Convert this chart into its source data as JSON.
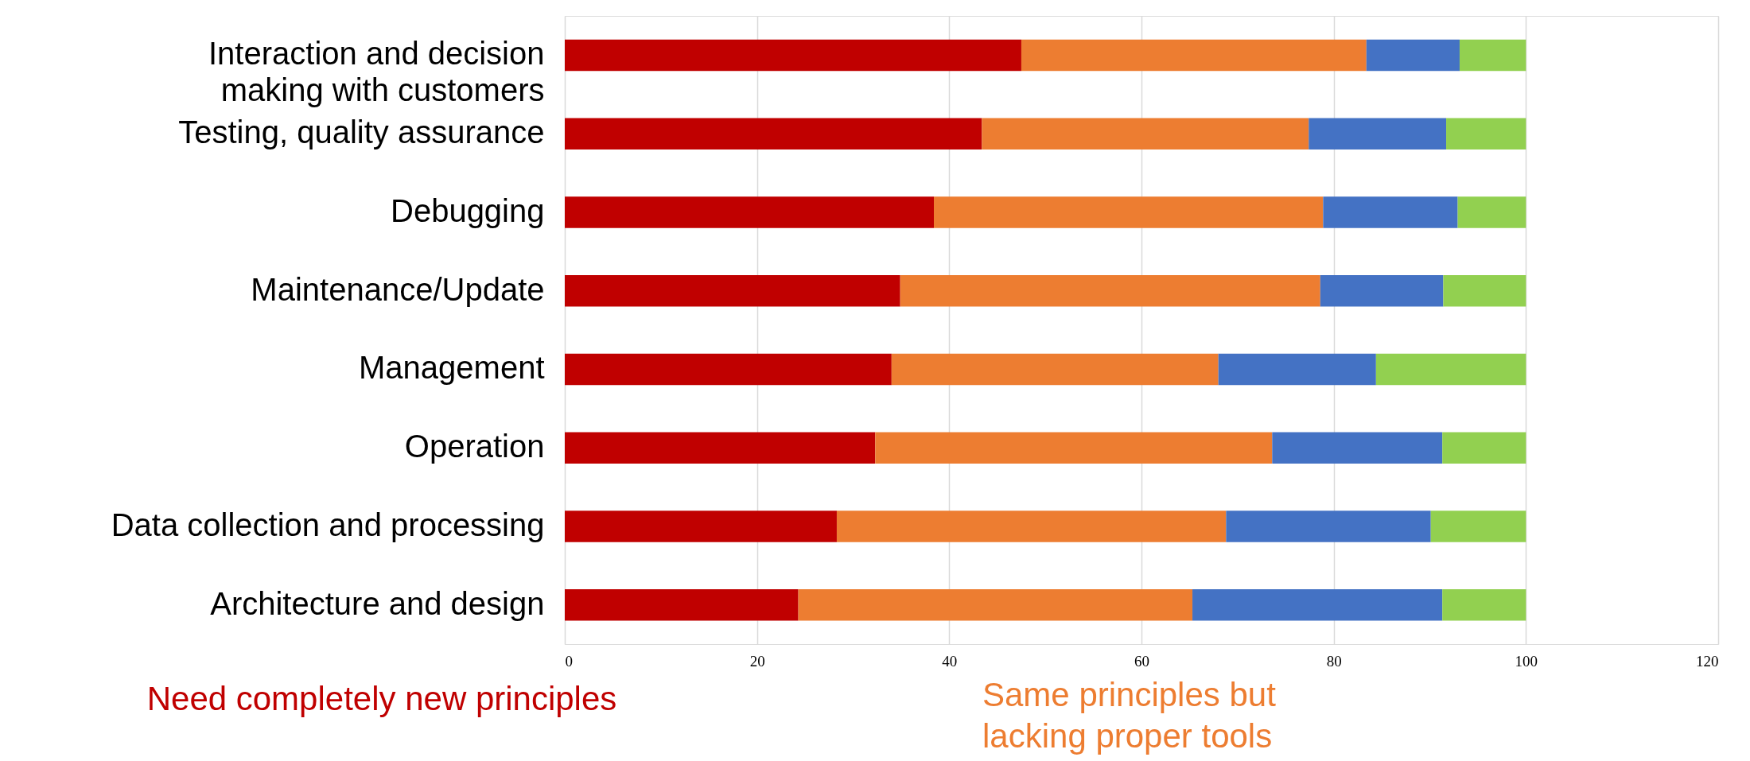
{
  "chart_data": {
    "type": "bar",
    "orientation": "horizontal",
    "stacked": true,
    "categories": [
      "Interaction and decision\nmaking with customers",
      "Testing, quality assurance",
      "Debugging",
      "Maintenance/Update",
      "Management",
      "Operation",
      "Data collection and processing",
      "Architecture and design"
    ],
    "series": [
      {
        "name": "Need completely new principles",
        "color": "#c00000",
        "values": [
          47.5,
          43.4,
          38.4,
          34.9,
          34.0,
          32.3,
          28.3,
          24.3
        ]
      },
      {
        "name": "Same principles but\nlacking proper tools",
        "color": "#ed7d31",
        "values": [
          35.9,
          34.0,
          40.5,
          43.7,
          34.0,
          41.3,
          40.5,
          41.0
        ]
      },
      {
        "color": "#4472c4",
        "values": [
          9.7,
          14.3,
          14.0,
          12.8,
          16.4,
          17.7,
          21.3,
          26.0
        ]
      },
      {
        "color": "#92d050",
        "values": [
          6.9,
          8.3,
          7.1,
          8.6,
          15.6,
          8.7,
          9.9,
          8.7
        ]
      }
    ],
    "xlim": [
      0,
      120
    ],
    "xticks": [
      0,
      20,
      40,
      60,
      80,
      100,
      120
    ],
    "grid": "x",
    "legend": false
  }
}
